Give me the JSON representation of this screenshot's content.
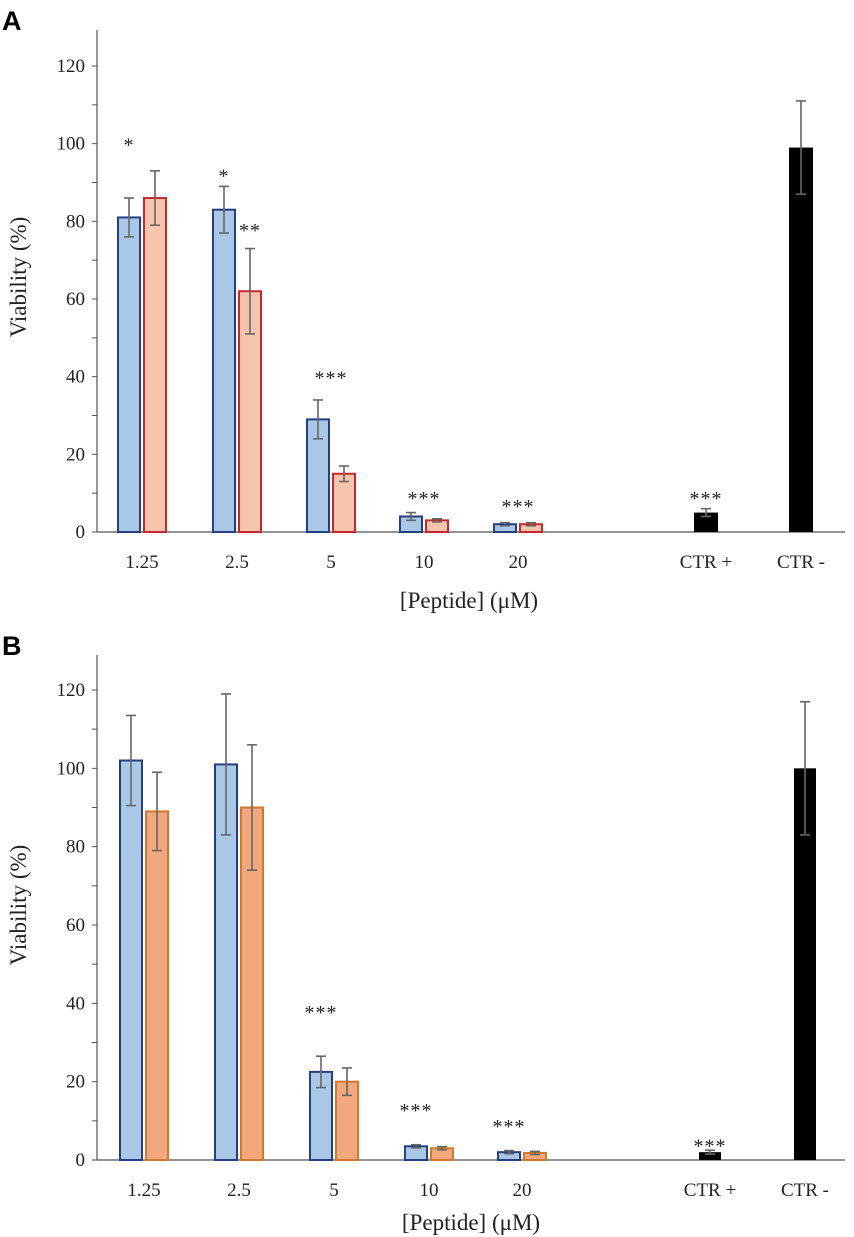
{
  "chart_data": [
    {
      "panel": "A",
      "type": "bar",
      "xlabel": "[Peptide] (μM)",
      "ylabel": "Viability (%)",
      "ylim": [
        0,
        130
      ],
      "yticks": [
        0,
        20,
        40,
        60,
        80,
        100,
        120
      ],
      "categories": [
        "1.25",
        "2.5",
        "5",
        "10",
        "20",
        "CTR +",
        "CTR -"
      ],
      "series": [
        {
          "name": "series-1",
          "fill": "#a9c8e6",
          "stroke": "#243f84",
          "values": [
            81,
            83,
            29,
            4,
            2,
            null,
            null
          ],
          "errors": [
            5,
            6,
            5,
            1,
            0.4,
            null,
            null
          ]
        },
        {
          "name": "series-2",
          "fill": "#f5c5ab",
          "stroke": "#c8282d",
          "values": [
            86,
            62,
            15,
            3,
            2,
            null,
            null
          ],
          "errors": [
            7,
            11,
            2,
            0.4,
            0.4,
            null,
            null
          ]
        }
      ],
      "controls": [
        {
          "category": "CTR +",
          "value": 5,
          "error": 1,
          "fill": "#000000"
        },
        {
          "category": "CTR -",
          "value": 99,
          "error": 12,
          "fill": "#000000"
        }
      ],
      "annotations": [
        {
          "text": "*",
          "category": "1.25",
          "series": 0,
          "y": 100
        },
        {
          "text": "*",
          "category": "2.5",
          "series": 0,
          "y": 92
        },
        {
          "text": "**",
          "category": "2.5",
          "series": 1,
          "y": 78
        },
        {
          "text": "***",
          "category": "5",
          "series": 1,
          "y": 40
        },
        {
          "text": "***",
          "category": "10",
          "series": 1,
          "y": 9
        },
        {
          "text": "***",
          "category": "20",
          "series": 1,
          "y": 7
        },
        {
          "text": "***",
          "category": "CTR +",
          "series": 0,
          "y": 9
        }
      ]
    },
    {
      "panel": "B",
      "type": "bar",
      "xlabel": "[Peptide] (μM)",
      "ylabel": "Viability (%)",
      "ylim": [
        0,
        128
      ],
      "yticks": [
        0,
        20,
        40,
        60,
        80,
        100,
        120
      ],
      "categories": [
        "1.25",
        "2.5",
        "5",
        "10",
        "20",
        "CTR +",
        "CTR -"
      ],
      "series": [
        {
          "name": "series-1",
          "fill": "#a9c8e6",
          "stroke": "#243f84",
          "values": [
            102,
            101,
            22.5,
            3.5,
            2,
            null,
            null
          ],
          "errors": [
            11.5,
            18,
            4,
            0.4,
            0.4,
            null,
            null
          ]
        },
        {
          "name": "series-2",
          "fill": "#f0a87c",
          "stroke": "#d2772c",
          "values": [
            89,
            90,
            20,
            3,
            1.8,
            null,
            null
          ],
          "errors": [
            10,
            16,
            3.5,
            0.4,
            0.4,
            null,
            null
          ]
        }
      ],
      "controls": [
        {
          "category": "CTR +",
          "value": 2,
          "error": 0.5,
          "fill": "#000000"
        },
        {
          "category": "CTR -",
          "value": 100,
          "error": 17,
          "fill": "#000000"
        }
      ],
      "annotations": [
        {
          "text": "***",
          "category": "5",
          "series": 0,
          "y": 38
        },
        {
          "text": "***",
          "category": "10",
          "series": 0,
          "y": 13
        },
        {
          "text": "***",
          "category": "20",
          "series": 0,
          "y": 9
        },
        {
          "text": "***",
          "category": "CTR +",
          "series": 0,
          "y": 4
        }
      ]
    }
  ]
}
